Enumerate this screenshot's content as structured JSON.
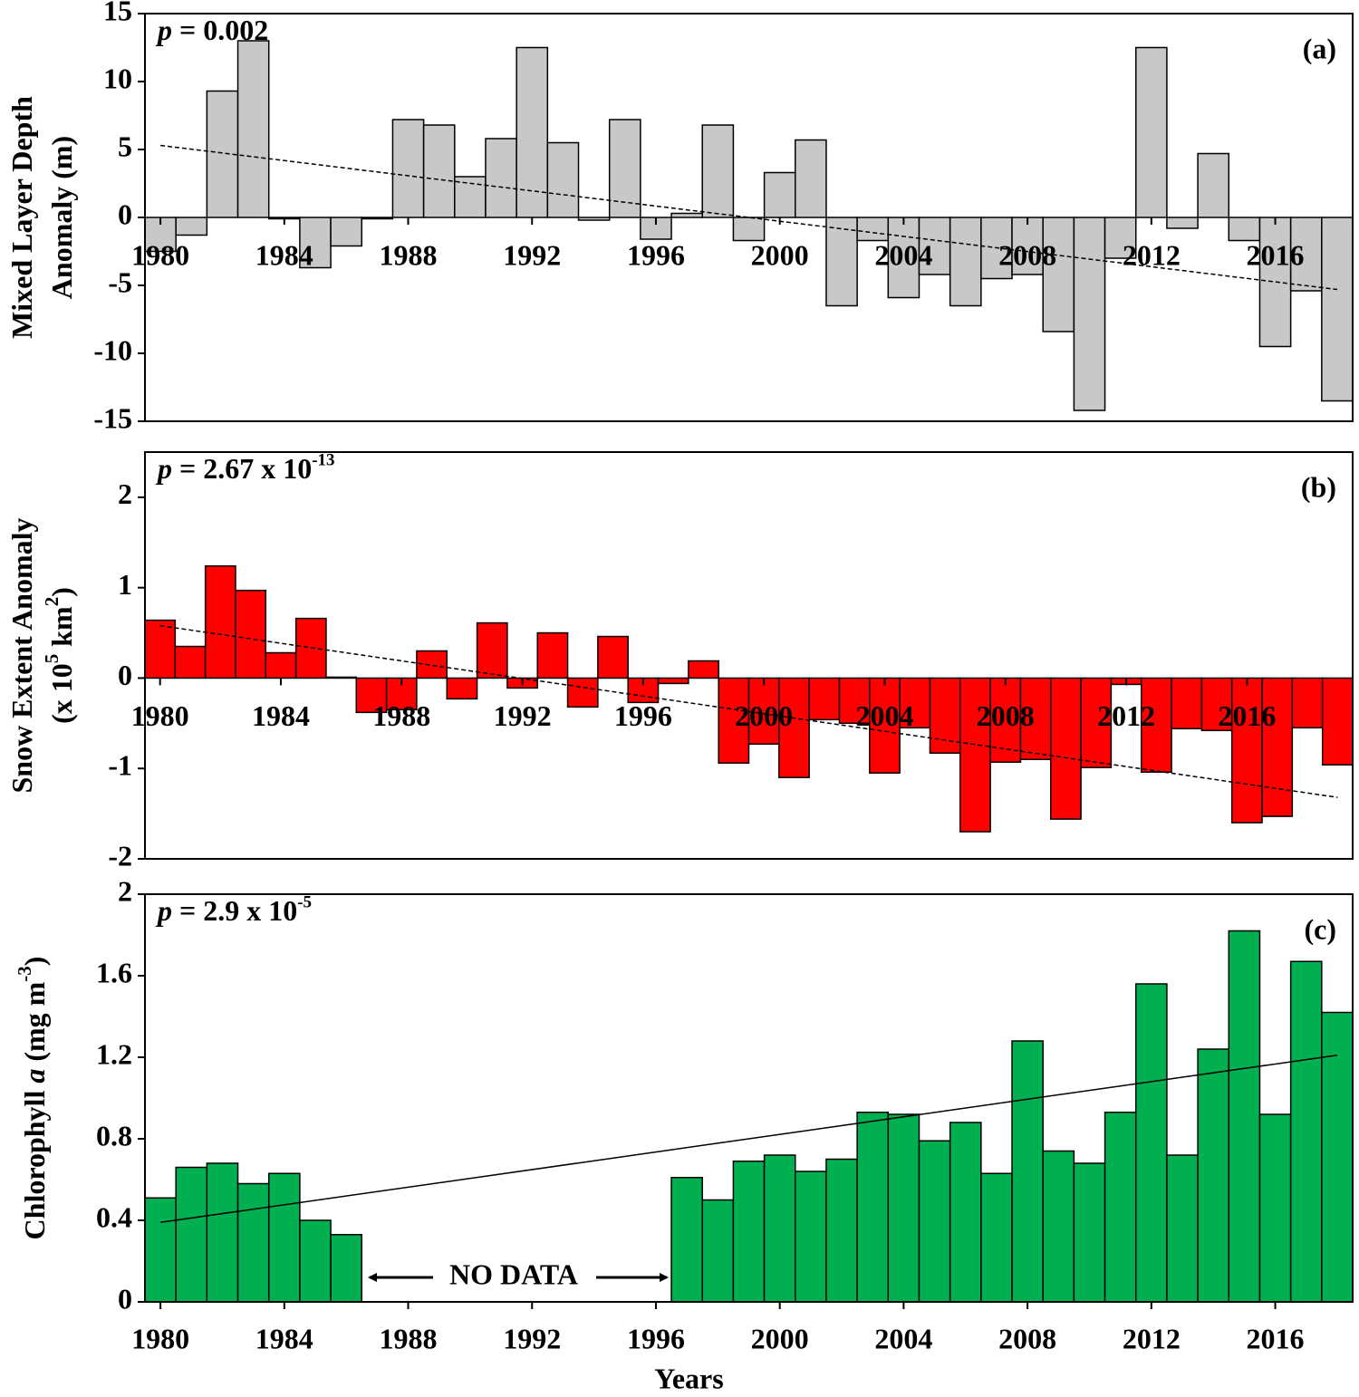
{
  "chart_data": [
    {
      "type": "bar",
      "panel_label": "(a)",
      "annotation": [
        {
          "t": "p",
          "italic": true
        },
        {
          "t": " = 0.002"
        }
      ],
      "ylabel": [
        [
          {
            "t": "Mixed Layer Depth"
          }
        ],
        [
          {
            "t": "Anomaly (m)"
          }
        ]
      ],
      "x": [
        1980,
        1981,
        1982,
        1983,
        1984,
        1985,
        1986,
        1987,
        1988,
        1989,
        1990,
        1991,
        1992,
        1993,
        1994,
        1995,
        1996,
        1997,
        1998,
        1999,
        2000,
        2001,
        2002,
        2003,
        2004,
        2005,
        2006,
        2007,
        2008,
        2009,
        2010,
        2011,
        2012,
        2013,
        2014,
        2015,
        2016,
        2017,
        2018
      ],
      "values": [
        -2.5,
        -1.3,
        9.3,
        13,
        -0.1,
        -3.7,
        -2.1,
        -0.1,
        7.2,
        6.8,
        3.0,
        5.8,
        12.5,
        5.5,
        -0.2,
        7.2,
        -1.6,
        0.3,
        6.8,
        -1.7,
        3.3,
        5.7,
        -6.5,
        -1.7,
        -5.9,
        -4.2,
        -6.5,
        -4.5,
        -4.2,
        -8.4,
        -14.2,
        -3.0,
        12.5,
        -0.8,
        4.7,
        -1.7,
        -9.5,
        -5.4,
        -13.5
      ],
      "color": "#c8c8c8",
      "xlim": [
        1979.5,
        2018.5
      ],
      "xticks": [
        1980,
        1984,
        1988,
        1992,
        1996,
        2000,
        2004,
        2008,
        2012,
        2016
      ],
      "ylim": [
        -15,
        15
      ],
      "yticks": [
        -15,
        -10,
        -5,
        0,
        5,
        10,
        15
      ],
      "trend": {
        "x": [
          1980,
          2018
        ],
        "values": [
          5.3,
          -5.3
        ]
      }
    },
    {
      "type": "bar",
      "panel_label": "(b)",
      "annotation": [
        {
          "t": "p",
          "italic": true
        },
        {
          "t": " = 2.67 x 10"
        },
        {
          "t": "-13",
          "sup": true
        }
      ],
      "ylabel": [
        [
          {
            "t": "Snow Extent Anomaly"
          }
        ],
        [
          {
            "t": "(x 10"
          },
          {
            "t": "5",
            "sup": true
          },
          {
            "t": " km"
          },
          {
            "t": "2",
            "sup": true
          },
          {
            "t": ")"
          }
        ]
      ],
      "x": [
        1980,
        1981,
        1982,
        1983,
        1984,
        1985,
        1986,
        1987,
        1988,
        1989,
        1990,
        1991,
        1992,
        1993,
        1994,
        1995,
        1996,
        1997,
        1998,
        1999,
        2000,
        2001,
        2002,
        2003,
        2004,
        2005,
        2006,
        2007,
        2008,
        2009,
        2010,
        2011,
        2012,
        2013,
        2014,
        2015,
        2016,
        2017,
        2018,
        2019
      ],
      "values": [
        0.64,
        0.35,
        1.24,
        0.97,
        0.28,
        0.66,
        0.01,
        -0.38,
        -0.35,
        0.3,
        -0.23,
        0.61,
        -0.11,
        0.5,
        -0.32,
        0.46,
        -0.27,
        -0.06,
        0.19,
        -0.94,
        -0.73,
        -1.1,
        -0.46,
        -0.5,
        -1.05,
        -0.55,
        -0.83,
        -1.7,
        -0.93,
        -0.9,
        -1.56,
        -0.99,
        -0.07,
        -1.04,
        -0.56,
        -0.58,
        -1.6,
        -1.53,
        -0.55,
        -0.96
      ],
      "color": "#ff0000",
      "xlim": [
        1979.5,
        2019.5
      ],
      "xticks": [
        1980,
        1984,
        1988,
        1992,
        1996,
        2000,
        2004,
        2008,
        2012,
        2016
      ],
      "ylim": [
        -2,
        2.5
      ],
      "yticks": [
        -2,
        -1,
        0,
        1,
        2
      ],
      "trend": {
        "x": [
          1980,
          2019
        ],
        "values": [
          0.58,
          -1.32
        ]
      }
    },
    {
      "type": "bar",
      "panel_label": "(c)",
      "annotation": [
        {
          "t": "p",
          "italic": true
        },
        {
          "t": " = 2.9 x 10"
        },
        {
          "t": "-5",
          "sup": true
        }
      ],
      "ylabel": [
        [
          {
            "t": "Chlorophyll "
          },
          {
            "t": "a",
            "italic": true
          },
          {
            "t": " (mg m"
          },
          {
            "t": "-3",
            "sup": true
          },
          {
            "t": ")"
          }
        ]
      ],
      "xlabel": "Years",
      "note": "NO DATA",
      "x": [
        1980,
        1981,
        1982,
        1983,
        1984,
        1985,
        1986,
        1987,
        1988,
        1989,
        1990,
        1991,
        1992,
        1993,
        1994,
        1995,
        1996,
        1997,
        1998,
        1999,
        2000,
        2001,
        2002,
        2003,
        2004,
        2005,
        2006,
        2007,
        2008,
        2009,
        2010,
        2011,
        2012,
        2013,
        2014,
        2015,
        2016,
        2017,
        2018
      ],
      "values": [
        0.51,
        0.66,
        0.68,
        0.58,
        0.63,
        0.4,
        0.33,
        null,
        null,
        null,
        null,
        null,
        null,
        null,
        null,
        null,
        null,
        0.61,
        0.5,
        0.69,
        0.72,
        0.64,
        0.7,
        0.93,
        0.92,
        0.79,
        0.88,
        0.63,
        1.28,
        0.74,
        0.68,
        0.93,
        1.56,
        0.72,
        1.24,
        1.82,
        0.92,
        1.67,
        1.42
      ],
      "color": "#00b050",
      "xlim": [
        1979.5,
        2018.5
      ],
      "xticks": [
        1980,
        1984,
        1988,
        1992,
        1996,
        2000,
        2004,
        2008,
        2012,
        2016
      ],
      "ylim": [
        0,
        2
      ],
      "yticks": [
        0,
        0.4,
        0.8,
        1.2,
        1.6,
        2
      ],
      "trend": {
        "x": [
          1980,
          2018
        ],
        "values": [
          0.39,
          1.21
        ]
      }
    }
  ]
}
